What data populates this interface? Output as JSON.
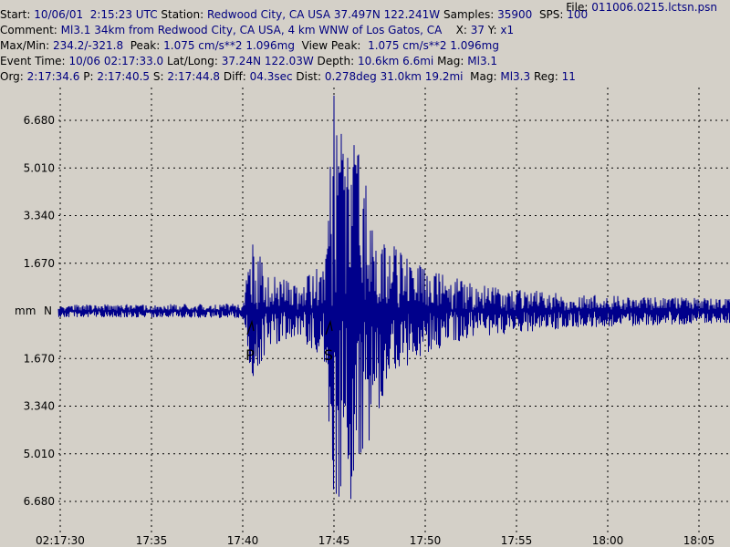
{
  "header": {
    "file_label": "File:",
    "file_value": "011006.0215.lctsn.psn",
    "line1": {
      "start_label": "Start:",
      "start_value": "10/06/01  2:15:23 UTC",
      "station_label": "Station:",
      "station_value": "Redwood City, CA USA 37.497N 122.241W",
      "samples_label": "Samples:",
      "samples_value": "35900",
      "sps_label": "SPS:",
      "sps_value": "100"
    },
    "line2": {
      "comment_label": "Comment:",
      "comment_value": "Ml3.1 34km from Redwood City, CA USA, 4 km WNW of Los Gatos, CA",
      "x_label": "X:",
      "x_value": "37",
      "y_label": "Y:",
      "y_value": "x1"
    },
    "line3": {
      "maxmin_label": "Max/Min:",
      "maxmin_value": "234.2/-321.8",
      "peak_label": "Peak:",
      "peak_value": "1.075 cm/s**2 1.096mg",
      "viewpeak_label": "View Peak:",
      "viewpeak_value": "1.075 cm/s**2 1.096mg"
    },
    "line4": {
      "event_label": "Event Time:",
      "event_value": "10/06 02:17:33.0",
      "latlong_label": "Lat/Long:",
      "latlong_value": "37.24N 122.03W",
      "depth_label": "Depth:",
      "depth_value": "10.6km 6.6mi",
      "mag_label": "Mag:",
      "mag_value": "Ml3.1"
    },
    "line5": {
      "org_label": "Org:",
      "org_value": "2:17:34.6",
      "p_label": "P:",
      "p_value": "2:17:40.5",
      "s_label": "S:",
      "s_value": "2:17:44.8",
      "diff_label": "Diff:",
      "diff_value": "04.3sec",
      "dist_label": "Dist:",
      "dist_value": "0.278deg 31.0km 19.2mi",
      "mag_label": "Mag:",
      "mag_value": "Ml3.3",
      "reg_label": "Reg:",
      "reg_value": "11"
    }
  },
  "colors": {
    "background": "#d4d0c8",
    "trace": "#00008b",
    "grid": "#000000",
    "value_text": "#000080"
  },
  "chart_data": {
    "type": "line",
    "unit_label": "mm",
    "channel_label": "N",
    "grid": true,
    "y_ticks": [
      "6.680",
      "5.010",
      "3.340",
      "1.670",
      "1.670",
      "3.340",
      "5.010",
      "6.680"
    ],
    "y_tick_values": [
      6.68,
      5.01,
      3.34,
      1.67,
      -1.67,
      -3.34,
      -5.01,
      -6.68
    ],
    "ylim": [
      -8.0,
      8.0
    ],
    "x_ticks": [
      "02:17:30",
      "17:35",
      "17:40",
      "17:45",
      "17:50",
      "17:55",
      "18:00",
      "18:05"
    ],
    "x_tick_seconds": [
      30,
      35,
      40,
      45,
      50,
      55,
      60,
      65
    ],
    "xlim": [
      29.9,
      66.7
    ],
    "picks": [
      {
        "label": "P",
        "time": 40.5
      },
      {
        "label": "S",
        "time": 44.8
      }
    ],
    "envelope": [
      {
        "t": 29.9,
        "amp": 0.22
      },
      {
        "t": 40.0,
        "amp": 0.25
      },
      {
        "t": 40.5,
        "amp": 2.4
      },
      {
        "t": 41.5,
        "amp": 1.3
      },
      {
        "t": 43.0,
        "amp": 0.9
      },
      {
        "t": 44.5,
        "amp": 1.8
      },
      {
        "t": 45.0,
        "amp": 7.6
      },
      {
        "t": 46.0,
        "amp": 6.6
      },
      {
        "t": 47.0,
        "amp": 4.4
      },
      {
        "t": 48.0,
        "amp": 2.4
      },
      {
        "t": 50.0,
        "amp": 1.5
      },
      {
        "t": 53.0,
        "amp": 0.9
      },
      {
        "t": 58.0,
        "amp": 0.6
      },
      {
        "t": 66.7,
        "amp": 0.42
      }
    ]
  }
}
